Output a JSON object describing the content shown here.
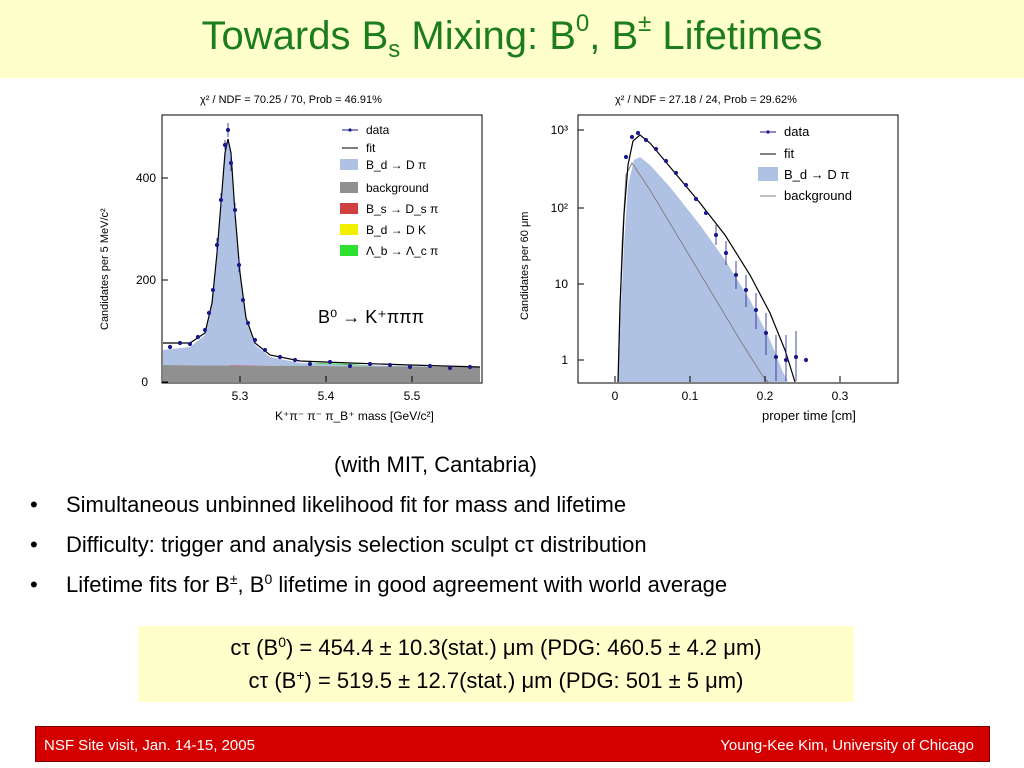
{
  "title": {
    "main": "Towards B",
    "sub": "s",
    "mid": " Mixing: B",
    "sup0": "0",
    "comma": ", B",
    "suppm": "±",
    "end": " Lifetimes"
  },
  "left_plot": {
    "stats": "χ² / NDF = 70.25 / 70, Prob = 46.91%",
    "ylabel": "Candidates per 5 MeV/c²",
    "xlabel": "K⁺π⁻ π⁻ π_B⁺ mass [GeV/c²]",
    "xticks": [
      "5.3",
      "5.4",
      "5.5"
    ],
    "yticks": [
      "0",
      "200",
      "400"
    ],
    "decay_label": "B⁰ → K⁺πππ",
    "legend": [
      "data",
      "fit",
      "B_d → D π",
      "background",
      "B_s → D_s π",
      "B_d → D K",
      "Λ_b → Λ_c π"
    ],
    "colors": {
      "signal": "#b0c2e4",
      "background": "#909090",
      "bs": "#d04040",
      "dk": "#f0f000",
      "lb": "#30e030",
      "data": "#1a1a8c"
    }
  },
  "right_plot": {
    "stats": "χ² / NDF = 27.18 / 24, Prob = 29.62%",
    "ylabel": "Candidates per 60 μm",
    "xlabel": "proper time [cm]",
    "xticks": [
      "0",
      "0.1",
      "0.2",
      "0.3"
    ],
    "yticks": [
      "1",
      "10",
      "10²",
      "10³"
    ],
    "legend": [
      "data",
      "fit",
      "B_d → D π",
      "background"
    ]
  },
  "collaboration": "(with MIT, Cantabria)",
  "bullets": {
    "dot": "•",
    "b1": "Simultaneous unbinned likelihood fit for mass and lifetime",
    "b2": "Difficulty: trigger and analysis selection sculpt cτ distribution",
    "b3_a": "Lifetime fits for B",
    "b3_sup1": "±",
    "b3_b": ", B",
    "b3_sup2": "0",
    "b3_c": " lifetime in good agreement with world average"
  },
  "results": {
    "r1_a": "cτ (B",
    "r1_sup": "0",
    "r1_b": ") = 454.4 ± 10.3(stat.) μm (PDG: 460.5 ± 4.2 μm)",
    "r2_a": "cτ (B",
    "r2_sup": "+",
    "r2_b": ") = 519.5 ± 12.7(stat.) μm (PDG: 501 ± 5 μm)"
  },
  "footer": {
    "left": "NSF Site visit, Jan. 14-15, 2005",
    "right": "Young-Kee Kim, University of Chicago"
  }
}
